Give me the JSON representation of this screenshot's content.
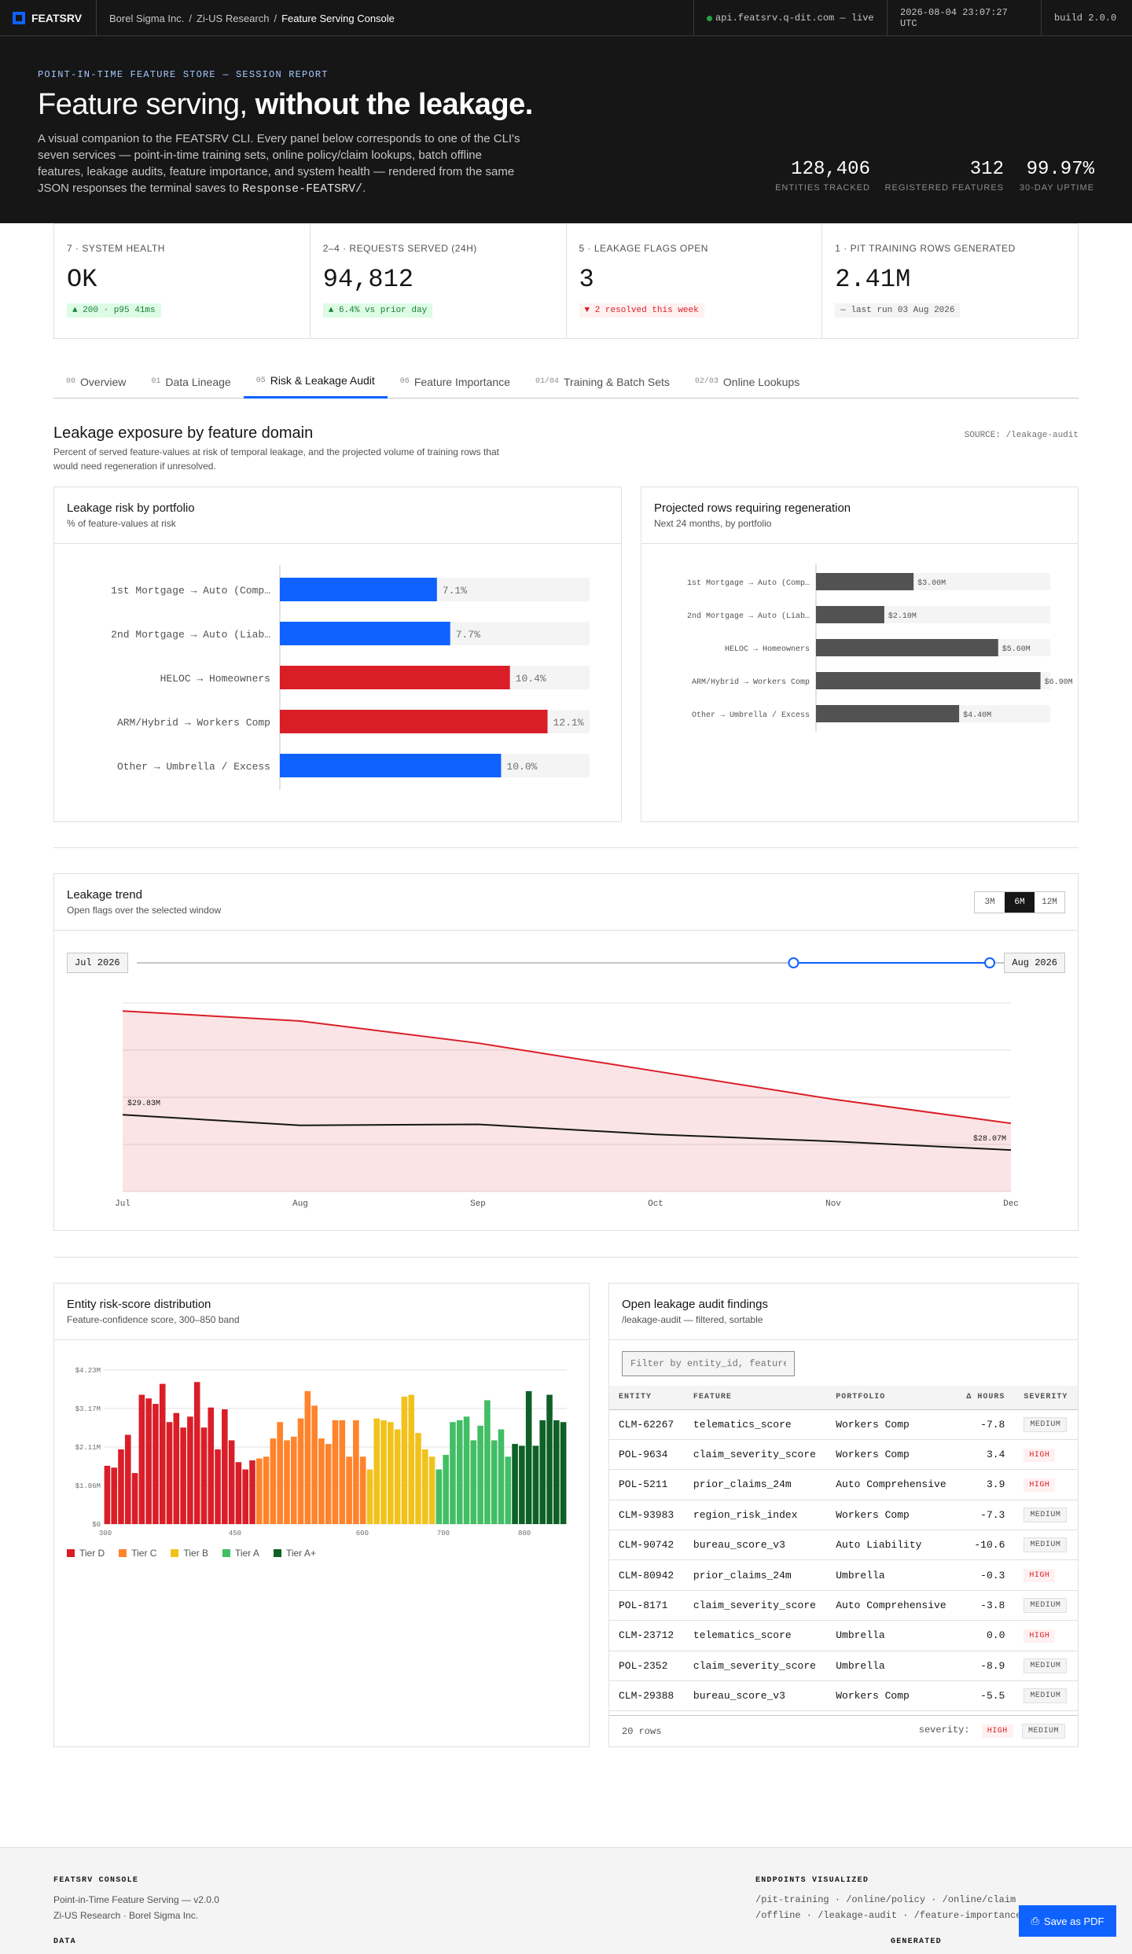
{
  "topbar": {
    "brand": "FEATSRV",
    "breadcrumbs": [
      "Borel Sigma Inc.",
      "Zi-US Research",
      "Feature Serving Console"
    ],
    "api": "api.featsrv.q-dit.com — live",
    "timestamp": "2026-08-04 23:07:27 UTC",
    "build": "build 2.0.0"
  },
  "hero": {
    "eyebrow": "POINT-IN-TIME FEATURE STORE — SESSION REPORT",
    "title_a": "Feature serving, ",
    "title_b": "without the leakage.",
    "desc_a": "A visual companion to the FEATSRV CLI. Every panel below corresponds to one of the CLI's seven services — point-in-time training sets, online policy/claim lookups, batch offline features, leakage audits, feature importance, and system health — rendered from the same JSON responses the terminal saves to ",
    "desc_code": "Response-FEATSRV/",
    "desc_b": ".",
    "stats": [
      {
        "value": "128,406",
        "label": "ENTITIES TRACKED"
      },
      {
        "value": "312",
        "label": "REGISTERED FEATURES"
      },
      {
        "value": "99.97%",
        "label": "30-DAY UPTIME"
      }
    ]
  },
  "kpis": [
    {
      "label": "7 · SYSTEM HEALTH",
      "value": "OK",
      "pill": "▲ 200 · p95 41ms",
      "tone": "g"
    },
    {
      "label": "2–4 · REQUESTS SERVED (24H)",
      "value": "94,812",
      "pill": "▲ 6.4% vs prior day",
      "tone": "g"
    },
    {
      "label": "5 · LEAKAGE FLAGS OPEN",
      "value": "3",
      "pill": "▼ 2 resolved this week",
      "tone": "r"
    },
    {
      "label": "1 · PIT TRAINING ROWS GENERATED",
      "value": "2.41M",
      "pill": "— last run 03 Aug 2026",
      "tone": "n"
    }
  ],
  "tabs": [
    {
      "num": "00",
      "label": "Overview"
    },
    {
      "num": "01",
      "label": "Data Lineage"
    },
    {
      "num": "05",
      "label": "Risk & Leakage Audit",
      "active": true
    },
    {
      "num": "06",
      "label": "Feature Importance"
    },
    {
      "num": "01/04",
      "label": "Training & Batch Sets"
    },
    {
      "num": "02/03",
      "label": "Online Lookups"
    }
  ],
  "section": {
    "title": "Leakage exposure by feature domain",
    "desc": "Percent of served feature-values at risk of temporal leakage, and the projected volume of training rows that would need regeneration if unresolved.",
    "source": "SOURCE: /leakage-audit"
  },
  "cards": {
    "risk": {
      "title": "Leakage risk by portfolio",
      "subtitle": "% of feature-values at risk"
    },
    "regen": {
      "title": "Projected rows requiring regeneration",
      "subtitle": "Next 24 months, by portfolio"
    },
    "trend": {
      "title": "Leakage trend",
      "subtitle": "Open flags over the selected window",
      "ranges": [
        "3M",
        "6M",
        "12M"
      ],
      "active_range": "6M",
      "start_label": "Jul 2026",
      "end_label": "Aug 2026",
      "slider_from": 0.77,
      "slider_to": 1.0
    },
    "dist": {
      "title": "Entity risk-score distribution",
      "subtitle": "Feature-confidence score, 300–850 band"
    },
    "audit": {
      "title": "Open leakage audit findings",
      "subtitle": "/leakage-audit — filtered, sortable",
      "filter_placeholder": "Filter by entity_id, feature…"
    }
  },
  "chart_data": [
    {
      "type": "bar",
      "orientation": "horizontal",
      "categories": [
        "1st Mortgage → Auto (Comp…",
        "2nd Mortgage → Auto (Liab…",
        "HELOC → Homeowners",
        "ARM/Hybrid → Workers Comp",
        "Other → Umbrella / Excess"
      ],
      "values": [
        7.1,
        7.7,
        10.4,
        12.1,
        10.0
      ],
      "labels": [
        "7.1%",
        "7.7%",
        "10.4%",
        "12.1%",
        "10.0%"
      ],
      "colors": [
        "#0f62fe",
        "#0f62fe",
        "#da1e28",
        "#da1e28",
        "#0f62fe"
      ],
      "xlim": [
        0,
        14
      ]
    },
    {
      "type": "bar",
      "orientation": "horizontal",
      "categories": [
        "1st Mortgage → Auto (Comp…",
        "2nd Mortgage → Auto (Liab…",
        "HELOC → Homeowners",
        "ARM/Hybrid → Workers Comp",
        "Other → Umbrella / Excess"
      ],
      "values": [
        3.0,
        2.1,
        5.6,
        6.9,
        4.4
      ],
      "labels": [
        "$3.00M",
        "$2.10M",
        "$5.60M",
        "$6.90M",
        "$4.40M"
      ],
      "xlim": [
        0,
        7.2
      ]
    },
    {
      "type": "area",
      "x": [
        "Jul",
        "Aug",
        "Sep",
        "Oct",
        "Nov",
        "Dec"
      ],
      "series": [
        {
          "values": [
            35.0,
            34.5,
            33.4,
            32.0,
            30.6,
            29.4
          ],
          "color": "#da1e28"
        },
        {
          "values": [
            29.83,
            29.3,
            29.35,
            28.85,
            28.5,
            28.07
          ],
          "color": "#161616"
        }
      ],
      "annotations": [
        {
          "x": "Jul",
          "text": "$29.83M"
        },
        {
          "x": "Dec",
          "text": "$28.07M"
        }
      ],
      "ylim": [
        26,
        35.4
      ]
    },
    {
      "type": "bar",
      "x_ticks": [
        "300",
        "450",
        "600",
        "700",
        "800"
      ],
      "y_ticks": [
        "$0",
        "$1.06M",
        "$2.11M",
        "$3.17M",
        "$4.23M"
      ],
      "ylim": [
        0,
        4.23
      ],
      "values": [
        1.6,
        1.55,
        2.05,
        2.45,
        1.4,
        3.55,
        3.45,
        3.3,
        3.85,
        2.8,
        3.05,
        2.65,
        2.95,
        3.9,
        2.65,
        3.2,
        2.05,
        3.15,
        2.3,
        1.7,
        1.5,
        1.75,
        1.8,
        1.85,
        2.35,
        2.8,
        2.3,
        2.4,
        2.9,
        3.65,
        3.25,
        2.35,
        2.2,
        2.85,
        2.85,
        1.85,
        2.85,
        1.85,
        1.5,
        2.9,
        2.85,
        2.8,
        2.6,
        3.5,
        3.55,
        2.5,
        2.05,
        1.85,
        1.5,
        1.9,
        2.8,
        2.85,
        2.95,
        2.3,
        2.7,
        3.4,
        2.3,
        2.6,
        1.85,
        2.2,
        2.15,
        3.65,
        2.15,
        2.85,
        3.55,
        2.85,
        2.8
      ],
      "tiers": [
        "D",
        "D",
        "D",
        "D",
        "D",
        "D",
        "D",
        "D",
        "D",
        "D",
        "D",
        "D",
        "D",
        "D",
        "D",
        "D",
        "D",
        "D",
        "D",
        "D",
        "D",
        "D",
        "C",
        "C",
        "C",
        "C",
        "C",
        "C",
        "C",
        "C",
        "C",
        "C",
        "C",
        "C",
        "C",
        "C",
        "C",
        "C",
        "B",
        "B",
        "B",
        "B",
        "B",
        "B",
        "B",
        "B",
        "B",
        "B",
        "A",
        "A",
        "A",
        "A",
        "A",
        "A",
        "A",
        "A",
        "A",
        "A",
        "A",
        "Ap",
        "Ap",
        "Ap",
        "Ap",
        "Ap",
        "Ap",
        "Ap",
        "Ap"
      ],
      "legend": [
        {
          "name": "Tier D",
          "color": "#da1e28"
        },
        {
          "name": "Tier C",
          "color": "#ff832b"
        },
        {
          "name": "Tier B",
          "color": "#f1c21b"
        },
        {
          "name": "Tier A",
          "color": "#42be65"
        },
        {
          "name": "Tier A+",
          "color": "#0e6027"
        }
      ]
    }
  ],
  "audit": {
    "columns": [
      "ENTITY",
      "FEATURE",
      "PORTFOLIO",
      "Δ HOURS",
      "SEVERITY"
    ],
    "rows": [
      [
        "CLM-62267",
        "telematics_score",
        "Workers Comp",
        "-7.8",
        "MEDIUM"
      ],
      [
        "POL-9634",
        "claim_severity_score",
        "Workers Comp",
        "3.4",
        "HIGH"
      ],
      [
        "POL-5211",
        "prior_claims_24m",
        "Auto Comprehensive",
        "3.9",
        "HIGH"
      ],
      [
        "CLM-93983",
        "region_risk_index",
        "Workers Comp",
        "-7.3",
        "MEDIUM"
      ],
      [
        "CLM-90742",
        "bureau_score_v3",
        "Auto Liability",
        "-10.6",
        "MEDIUM"
      ],
      [
        "CLM-80942",
        "prior_claims_24m",
        "Umbrella",
        "-0.3",
        "HIGH"
      ],
      [
        "POL-8171",
        "claim_severity_score",
        "Auto Comprehensive",
        "-3.8",
        "MEDIUM"
      ],
      [
        "CLM-23712",
        "telematics_score",
        "Umbrella",
        "0.0",
        "HIGH"
      ],
      [
        "POL-2352",
        "claim_severity_score",
        "Umbrella",
        "-8.9",
        "MEDIUM"
      ],
      [
        "CLM-29388",
        "bureau_score_v3",
        "Workers Comp",
        "-5.5",
        "MEDIUM"
      ]
    ],
    "row_count": "20 rows",
    "severity_label": "severity:",
    "severity_chips": [
      "HIGH",
      "MEDIUM"
    ]
  },
  "footer": {
    "console_head": "FEATSRV CONSOLE",
    "console_line1": "Point-in-Time Feature Serving — v2.0.0",
    "console_line2": "Zi-US Research · Borel Sigma Inc.",
    "data_head": "DATA",
    "endpoints_head": "ENDPOINTS VISUALIZED",
    "endpoints_line1": "/pit-training · /online/policy · /online/claim",
    "endpoints_line2": "/offline · /leakage-audit · /feature-importance",
    "generated_head": "GENERATED",
    "pdf_button": "Save as PDF"
  }
}
